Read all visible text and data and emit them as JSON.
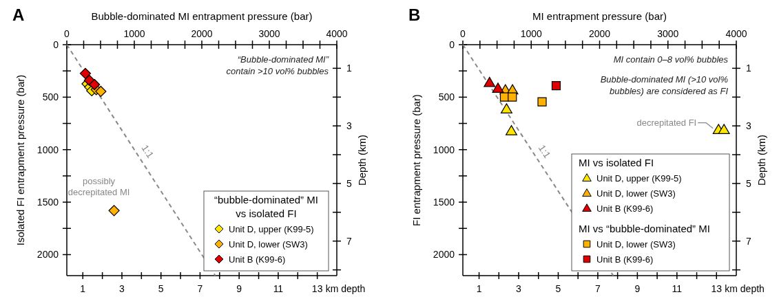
{
  "chart_data": [
    {
      "type": "scatter",
      "title": "A",
      "xlabel": "Bubble-dominated MI entrapment pressure (bar)",
      "ylabel": "Isolated FI entrapment pressure (bar)",
      "y2label": "Depth (km)",
      "x2label": "km depth",
      "legend_title": "“bubble-dominated” MI\nvs isolated FI",
      "legend": "bottom right",
      "xlim": [
        0,
        4000
      ],
      "xticks": [
        0,
        {
          "value": 250,
          "label": null
        },
        {
          "value": 500,
          "label": null
        },
        {
          "value": 750,
          "label": null
        },
        1000,
        {
          "value": 1250,
          "label": null
        },
        {
          "value": 1500,
          "label": null
        },
        {
          "value": 1750,
          "label": null
        },
        2000,
        {
          "value": 2250,
          "label": null
        },
        {
          "value": 2500,
          "label": null
        },
        {
          "value": 2750,
          "label": null
        },
        3000,
        {
          "value": 3250,
          "label": null
        },
        {
          "value": 3500,
          "label": null
        },
        {
          "value": 3750,
          "label": null
        },
        4000
      ],
      "ylim": [
        2200,
        0
      ],
      "yticks": [
        0,
        {
          "value": 250,
          "label": null
        },
        500,
        {
          "value": 750,
          "label": null
        },
        1000,
        {
          "value": 1250,
          "label": null
        },
        1500,
        {
          "value": 1750,
          "label": null
        },
        2000
      ],
      "y2lim": [
        8.2,
        0.18
      ],
      "y2ticks": [
        1,
        {
          "value": 2,
          "label": null
        },
        3,
        {
          "value": 4,
          "label": null
        },
        5,
        {
          "value": 6,
          "label": null
        },
        7,
        {
          "value": 8,
          "label": null
        }
      ],
      "x2lim": [
        0.18,
        14
      ],
      "x2ticks": [
        1,
        {
          "value": 2,
          "label": null
        },
        3,
        {
          "value": 4,
          "label": null
        },
        5,
        {
          "value": 6,
          "label": null
        },
        7,
        {
          "value": 8,
          "label": null
        },
        9,
        {
          "value": 10,
          "label": null
        },
        11,
        {
          "value": 12,
          "label": null
        },
        13
      ],
      "annotations": [
        "“Bubble-dominated MI”\ncontain >10 vol% bubbles",
        {
          "text": "possibly\ndecrepitated MI",
          "x": 700,
          "y": 1580
        },
        "1:1"
      ],
      "series": [
        {
          "type": "line",
          "color": "#888888",
          "line_style": "dashed",
          "x": [
            0,
            2200
          ],
          "values": [
            0,
            2200
          ]
        },
        {
          "name": "Unit D, upper (K99-5)",
          "color": "#ffe600",
          "marker": "diamond",
          "x": [
            300,
            340,
            370
          ],
          "values": [
            373,
            405,
            438
          ]
        },
        {
          "name": "Unit D, lower (SW3)",
          "color": "#ffb000",
          "marker": "diamond",
          "x": [
            436,
            504,
            700
          ],
          "values": [
            428,
            445,
            1580
          ]
        },
        {
          "name": "Unit B (K99-6)",
          "color": "#e00000",
          "marker": "diamond",
          "x": [
            275,
            335,
            410
          ],
          "values": [
            274,
            340,
            380
          ]
        }
      ]
    },
    {
      "type": "scatter",
      "title": "B",
      "xlabel": "MI entrapment pressure (bar)",
      "ylabel": "FI entrapment pressure (bar)",
      "y2label": "Depth (km)",
      "x2label": "km depth",
      "legend_title": "MI vs isolated FI",
      "legend": "bottom right",
      "xlim": [
        0,
        4000
      ],
      "xticks": [
        0,
        {
          "value": 250,
          "label": null
        },
        {
          "value": 500,
          "label": null
        },
        {
          "value": 750,
          "label": null
        },
        1000,
        {
          "value": 1250,
          "label": null
        },
        {
          "value": 1500,
          "label": null
        },
        {
          "value": 1750,
          "label": null
        },
        2000,
        {
          "value": 2250,
          "label": null
        },
        {
          "value": 2500,
          "label": null
        },
        {
          "value": 2750,
          "label": null
        },
        3000,
        {
          "value": 3250,
          "label": null
        },
        {
          "value": 3500,
          "label": null
        },
        {
          "value": 3750,
          "label": null
        },
        4000
      ],
      "ylim": [
        2200,
        0
      ],
      "yticks": [
        0,
        {
          "value": 250,
          "label": null
        },
        500,
        {
          "value": 750,
          "label": null
        },
        1000,
        {
          "value": 1250,
          "label": null
        },
        1500,
        {
          "value": 1750,
          "label": null
        },
        2000
      ],
      "y2lim": [
        8.2,
        0.18
      ],
      "y2ticks": [
        1,
        {
          "value": 2,
          "label": null
        },
        3,
        {
          "value": 4,
          "label": null
        },
        5,
        {
          "value": 6,
          "label": null
        },
        7,
        {
          "value": 8,
          "label": null
        }
      ],
      "x2lim": [
        0.18,
        14
      ],
      "x2ticks": [
        1,
        {
          "value": 2,
          "label": null
        },
        3,
        {
          "value": 4,
          "label": null
        },
        5,
        {
          "value": 6,
          "label": null
        },
        7,
        {
          "value": 8,
          "label": null
        },
        9,
        {
          "value": 10,
          "label": null
        },
        11,
        {
          "value": 12,
          "label": null
        },
        13
      ],
      "annotations": [
        "MI contain 0–8 vol% bubbles",
        "Bubble-dominated MI (>10 vol%\nbubbles) are considered as FI",
        "MI vs “bubble-dominated” MI",
        {
          "text": "decrepitated FI",
          "x": 3740,
          "y": 810
        },
        "1:1"
      ],
      "series": [
        {
          "type": "line",
          "color": "#888888",
          "line_style": "dashed",
          "x": [
            0,
            2200
          ],
          "values": [
            0,
            2200
          ]
        },
        {
          "name": "Unit D, upper (K99-5)",
          "color": "#ffe600",
          "marker": "triangle",
          "x": [
            639,
            710,
            3740,
            3820
          ],
          "values": [
            614,
            822,
            810,
            810
          ]
        },
        {
          "name": "Unit D, lower (SW3)",
          "color": "#ffb000",
          "marker": "triangle",
          "x": [
            622,
            726
          ],
          "values": [
            432,
            432
          ]
        },
        {
          "name": "Unit B (K99-6)",
          "color": "#e00000",
          "marker": "triangle",
          "x": [
            390,
            514
          ],
          "values": [
            362,
            417
          ]
        },
        {
          "name": "Unit D, lower (SW3)",
          "color": "#ffb000",
          "marker": "square",
          "x": [
            609,
            723,
            1159
          ],
          "values": [
            498,
            498,
            544
          ]
        },
        {
          "name": "Unit B (K99-6)",
          "color": "#e00000",
          "marker": "square",
          "x": [
            1365
          ],
          "values": [
            390
          ]
        }
      ]
    }
  ]
}
